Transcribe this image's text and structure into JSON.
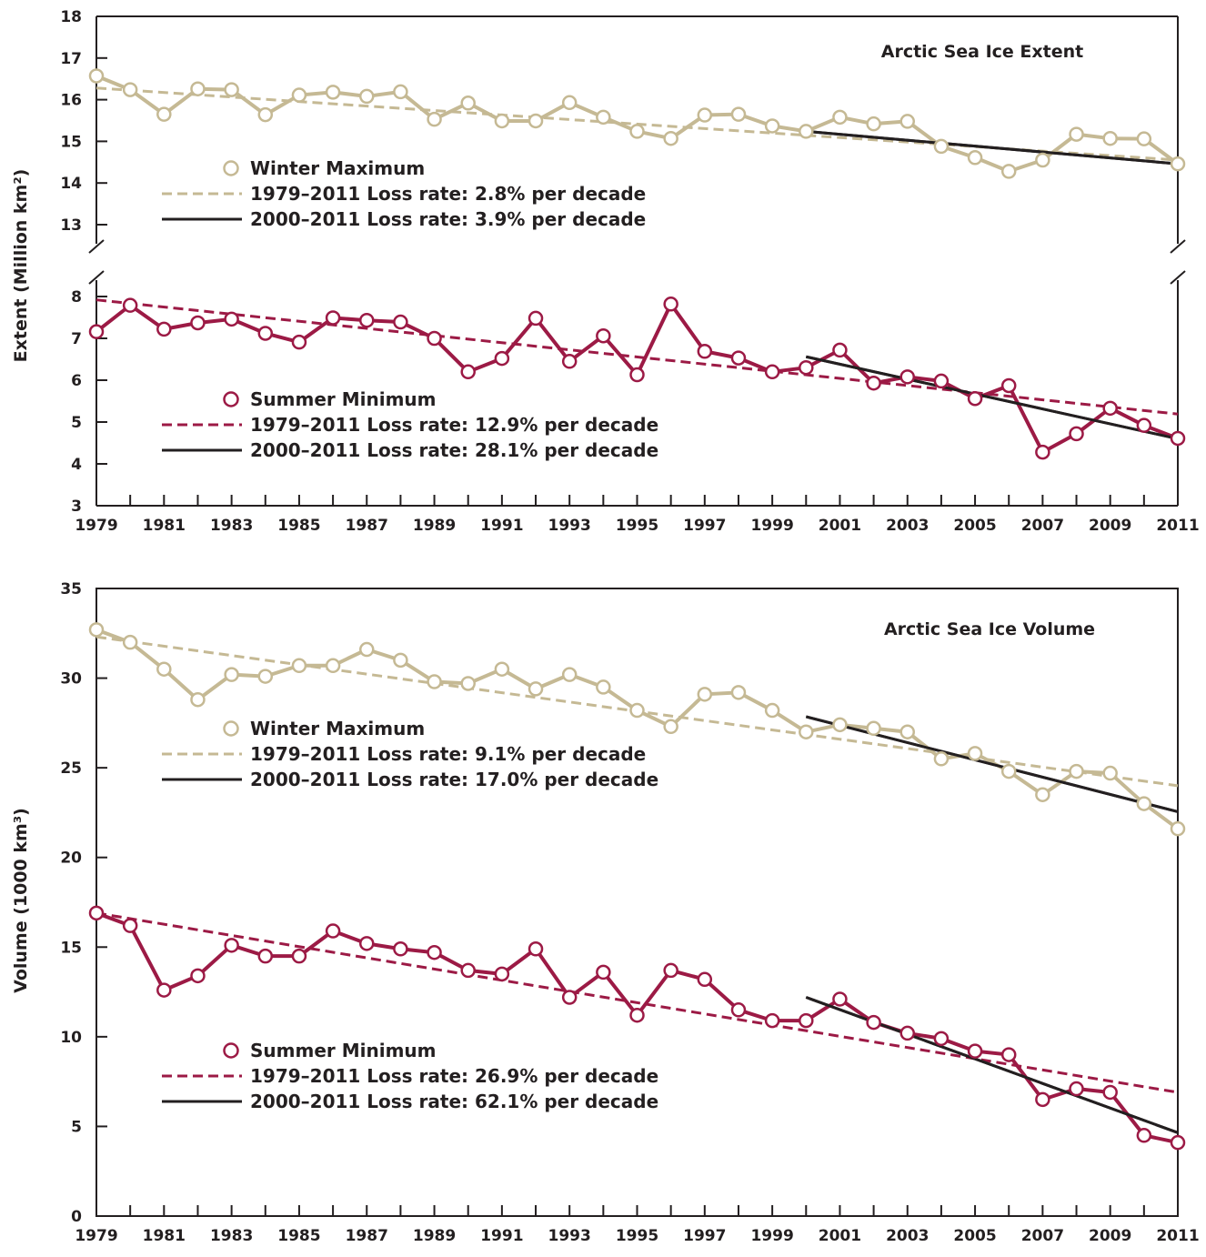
{
  "colors": {
    "winter": "#c5b994",
    "summer": "#9c1a45",
    "recent_trend": "#231f20",
    "axis": "#231f20",
    "marker_fill": "#ffffff"
  },
  "chart_data": [
    {
      "type": "line",
      "title": "Arctic Sea Ice Extent",
      "ylabel": "Extent (Million km²)",
      "broken_y_axis": true,
      "ylim_upper": [
        13,
        18
      ],
      "ylim_lower": [
        3,
        8
      ],
      "yticks_upper": [
        "13",
        "14",
        "15",
        "16",
        "17",
        "18"
      ],
      "yticks_lower": [
        "3",
        "4",
        "5",
        "6",
        "7",
        "8"
      ],
      "x": [
        1979,
        1980,
        1981,
        1982,
        1983,
        1984,
        1985,
        1986,
        1987,
        1988,
        1989,
        1990,
        1991,
        1992,
        1993,
        1994,
        1995,
        1996,
        1997,
        1998,
        1999,
        2000,
        2001,
        2002,
        2003,
        2004,
        2005,
        2006,
        2007,
        2008,
        2009,
        2010,
        2011
      ],
      "xticks": [
        "1979",
        "1981",
        "1983",
        "1985",
        "1987",
        "1989",
        "1991",
        "1993",
        "1995",
        "1997",
        "1999",
        "2001",
        "2003",
        "2005",
        "2007",
        "2009",
        "2011"
      ],
      "series": [
        {
          "name": "Winter Maximum",
          "color": "#c5b994",
          "values": [
            16.57,
            16.24,
            15.65,
            16.26,
            16.24,
            15.64,
            16.11,
            16.18,
            16.08,
            16.19,
            15.53,
            15.92,
            15.49,
            15.49,
            15.93,
            15.58,
            15.24,
            15.07,
            15.63,
            15.65,
            15.37,
            15.24,
            15.58,
            15.42,
            15.48,
            14.88,
            14.61,
            14.28,
            14.55,
            15.17,
            15.07,
            15.06,
            14.46
          ],
          "trends": [
            {
              "label": "1979–2011 Loss rate: 2.8% per decade",
              "style": "dashed",
              "from": [
                1979,
                16.28
              ],
              "to": [
                2011,
                14.55
              ]
            },
            {
              "label": "2000–2011 Loss rate: 3.9% per decade",
              "style": "solid",
              "from": [
                2000,
                15.24
              ],
              "to": [
                2011,
                14.46
              ]
            }
          ]
        },
        {
          "name": "Summer Minimum",
          "color": "#9c1a45",
          "values": [
            7.16,
            7.79,
            7.22,
            7.37,
            7.46,
            7.12,
            6.91,
            7.49,
            7.43,
            7.39,
            7.0,
            6.2,
            6.52,
            7.48,
            6.45,
            7.06,
            6.13,
            7.82,
            6.69,
            6.53,
            6.2,
            6.3,
            6.72,
            5.93,
            6.08,
            5.98,
            5.56,
            5.87,
            4.28,
            4.72,
            5.33,
            4.92,
            4.61
          ],
          "trends": [
            {
              "label": "1979–2011 Loss rate: 12.9% per decade",
              "style": "dashed",
              "from": [
                1979,
                7.92
              ],
              "to": [
                2011,
                5.19
              ]
            },
            {
              "label": "2000–2011 Loss rate: 28.1% per decade",
              "style": "solid",
              "from": [
                2000,
                6.56
              ],
              "to": [
                2011,
                4.6
              ]
            }
          ]
        }
      ]
    },
    {
      "type": "line",
      "title": "Arctic Sea Ice Volume",
      "ylabel": "Volume (1000 km³)",
      "ylim": [
        0,
        35
      ],
      "yticks": [
        "0",
        "5",
        "10",
        "15",
        "20",
        "25",
        "30",
        "35"
      ],
      "x": [
        1979,
        1980,
        1981,
        1982,
        1983,
        1984,
        1985,
        1986,
        1987,
        1988,
        1989,
        1990,
        1991,
        1992,
        1993,
        1994,
        1995,
        1996,
        1997,
        1998,
        1999,
        2000,
        2001,
        2002,
        2003,
        2004,
        2005,
        2006,
        2007,
        2008,
        2009,
        2010,
        2011
      ],
      "xticks": [
        "1979",
        "1981",
        "1983",
        "1985",
        "1987",
        "1989",
        "1991",
        "1993",
        "1995",
        "1997",
        "1999",
        "2001",
        "2003",
        "2005",
        "2007",
        "2009",
        "2011"
      ],
      "series": [
        {
          "name": "Winter Maximum",
          "color": "#c5b994",
          "values": [
            32.7,
            32.0,
            30.5,
            28.8,
            30.2,
            30.1,
            30.7,
            30.7,
            31.6,
            31.0,
            29.8,
            29.7,
            30.5,
            29.4,
            30.2,
            29.5,
            28.2,
            27.3,
            29.1,
            29.2,
            28.2,
            27.0,
            27.4,
            27.2,
            27.0,
            25.5,
            25.8,
            24.8,
            23.5,
            24.8,
            24.7,
            23.0,
            21.6
          ],
          "trends": [
            {
              "label": "1979–2011 Loss rate: 9.1% per decade",
              "style": "dashed",
              "from": [
                1979,
                32.3
              ],
              "to": [
                2011,
                24.0
              ]
            },
            {
              "label": "2000–2011 Loss rate: 17.0% per decade",
              "style": "solid",
              "from": [
                2000,
                27.85
              ],
              "to": [
                2011,
                22.55
              ]
            }
          ]
        },
        {
          "name": "Summer Minimum",
          "color": "#9c1a45",
          "values": [
            16.9,
            16.2,
            12.6,
            13.4,
            15.1,
            14.5,
            14.5,
            15.9,
            15.2,
            14.9,
            14.7,
            13.7,
            13.5,
            14.9,
            12.2,
            13.6,
            11.2,
            13.7,
            13.2,
            11.5,
            10.9,
            10.9,
            12.1,
            10.8,
            10.2,
            9.9,
            9.2,
            9.0,
            6.5,
            7.1,
            6.9,
            4.5,
            4.1
          ],
          "trends": [
            {
              "label": "1979–2011 Loss rate: 26.9% per decade",
              "style": "dashed",
              "from": [
                1979,
                16.9
              ],
              "to": [
                2011,
                6.9
              ]
            },
            {
              "label": "2000–2011 Loss rate: 62.1% per decade",
              "style": "solid",
              "from": [
                2000,
                12.2
              ],
              "to": [
                2011,
                4.65
              ]
            }
          ]
        }
      ]
    }
  ]
}
